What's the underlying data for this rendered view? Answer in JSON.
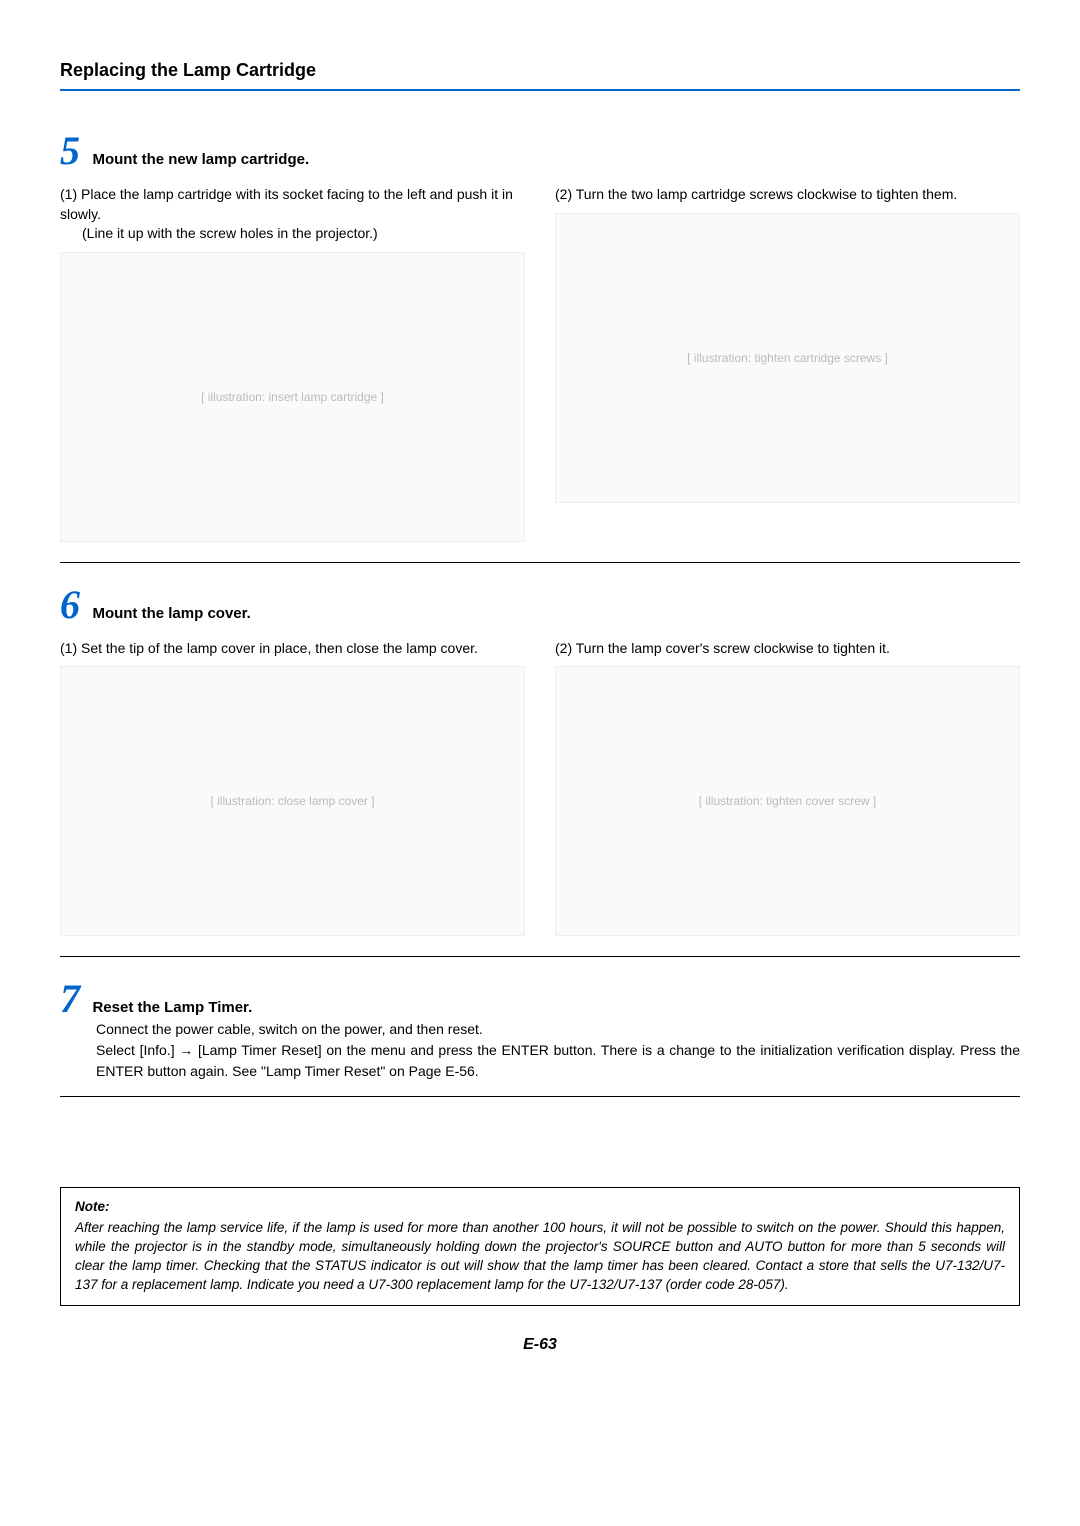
{
  "header": {
    "title": "Replacing the Lamp Cartridge"
  },
  "step5": {
    "num": "5",
    "title": "Mount the new lamp cartridge.",
    "left_main": "(1) Place the lamp cartridge with its socket facing to the left and push it in slowly.",
    "left_sub": "(Line it up with the screw holes in the projector.)",
    "right_main": "(2) Turn the two lamp cartridge screws clockwise to tighten them."
  },
  "step6": {
    "num": "6",
    "title": "Mount the lamp cover.",
    "left_main": "(1) Set the tip of the lamp cover in place, then close the lamp cover.",
    "right_main": "(2) Turn the lamp cover's screw clockwise to tighten it."
  },
  "step7": {
    "num": "7",
    "title": "Reset the Lamp Timer.",
    "line1": "Connect the power cable, switch on the power, and then reset.",
    "line2a": "Select [Info.] ",
    "arrow": "→",
    "line2b": " [Lamp Timer Reset] on the menu and press the ENTER button. There is a change to the initialization verification display. Press the ENTER button again. See \"Lamp Timer Reset\" on Page E-56."
  },
  "note": {
    "title": "Note:",
    "body": "After reaching the lamp service life, if the lamp is used for more than another 100 hours, it will not be possible to switch on the power. Should this happen, while the projector is in the standby mode, simultaneously holding down the projector's SOURCE button and AUTO button for more than 5 seconds will clear the lamp timer. Checking that the STATUS indicator is out will show that the lamp timer has been cleared. Contact a store that sells the U7-132/U7-137 for a replacement lamp. Indicate you need a U7-300 replacement lamp for the U7-132/U7-137 (order code 28-057)."
  },
  "footer": {
    "page": "E-63"
  },
  "figures": {
    "f5_1": "[ illustration: insert lamp cartridge ]",
    "f5_2": "[ illustration: tighten cartridge screws ]",
    "f6_1": "[ illustration: close lamp cover ]",
    "f6_2": "[ illustration: tighten cover screw ]"
  }
}
